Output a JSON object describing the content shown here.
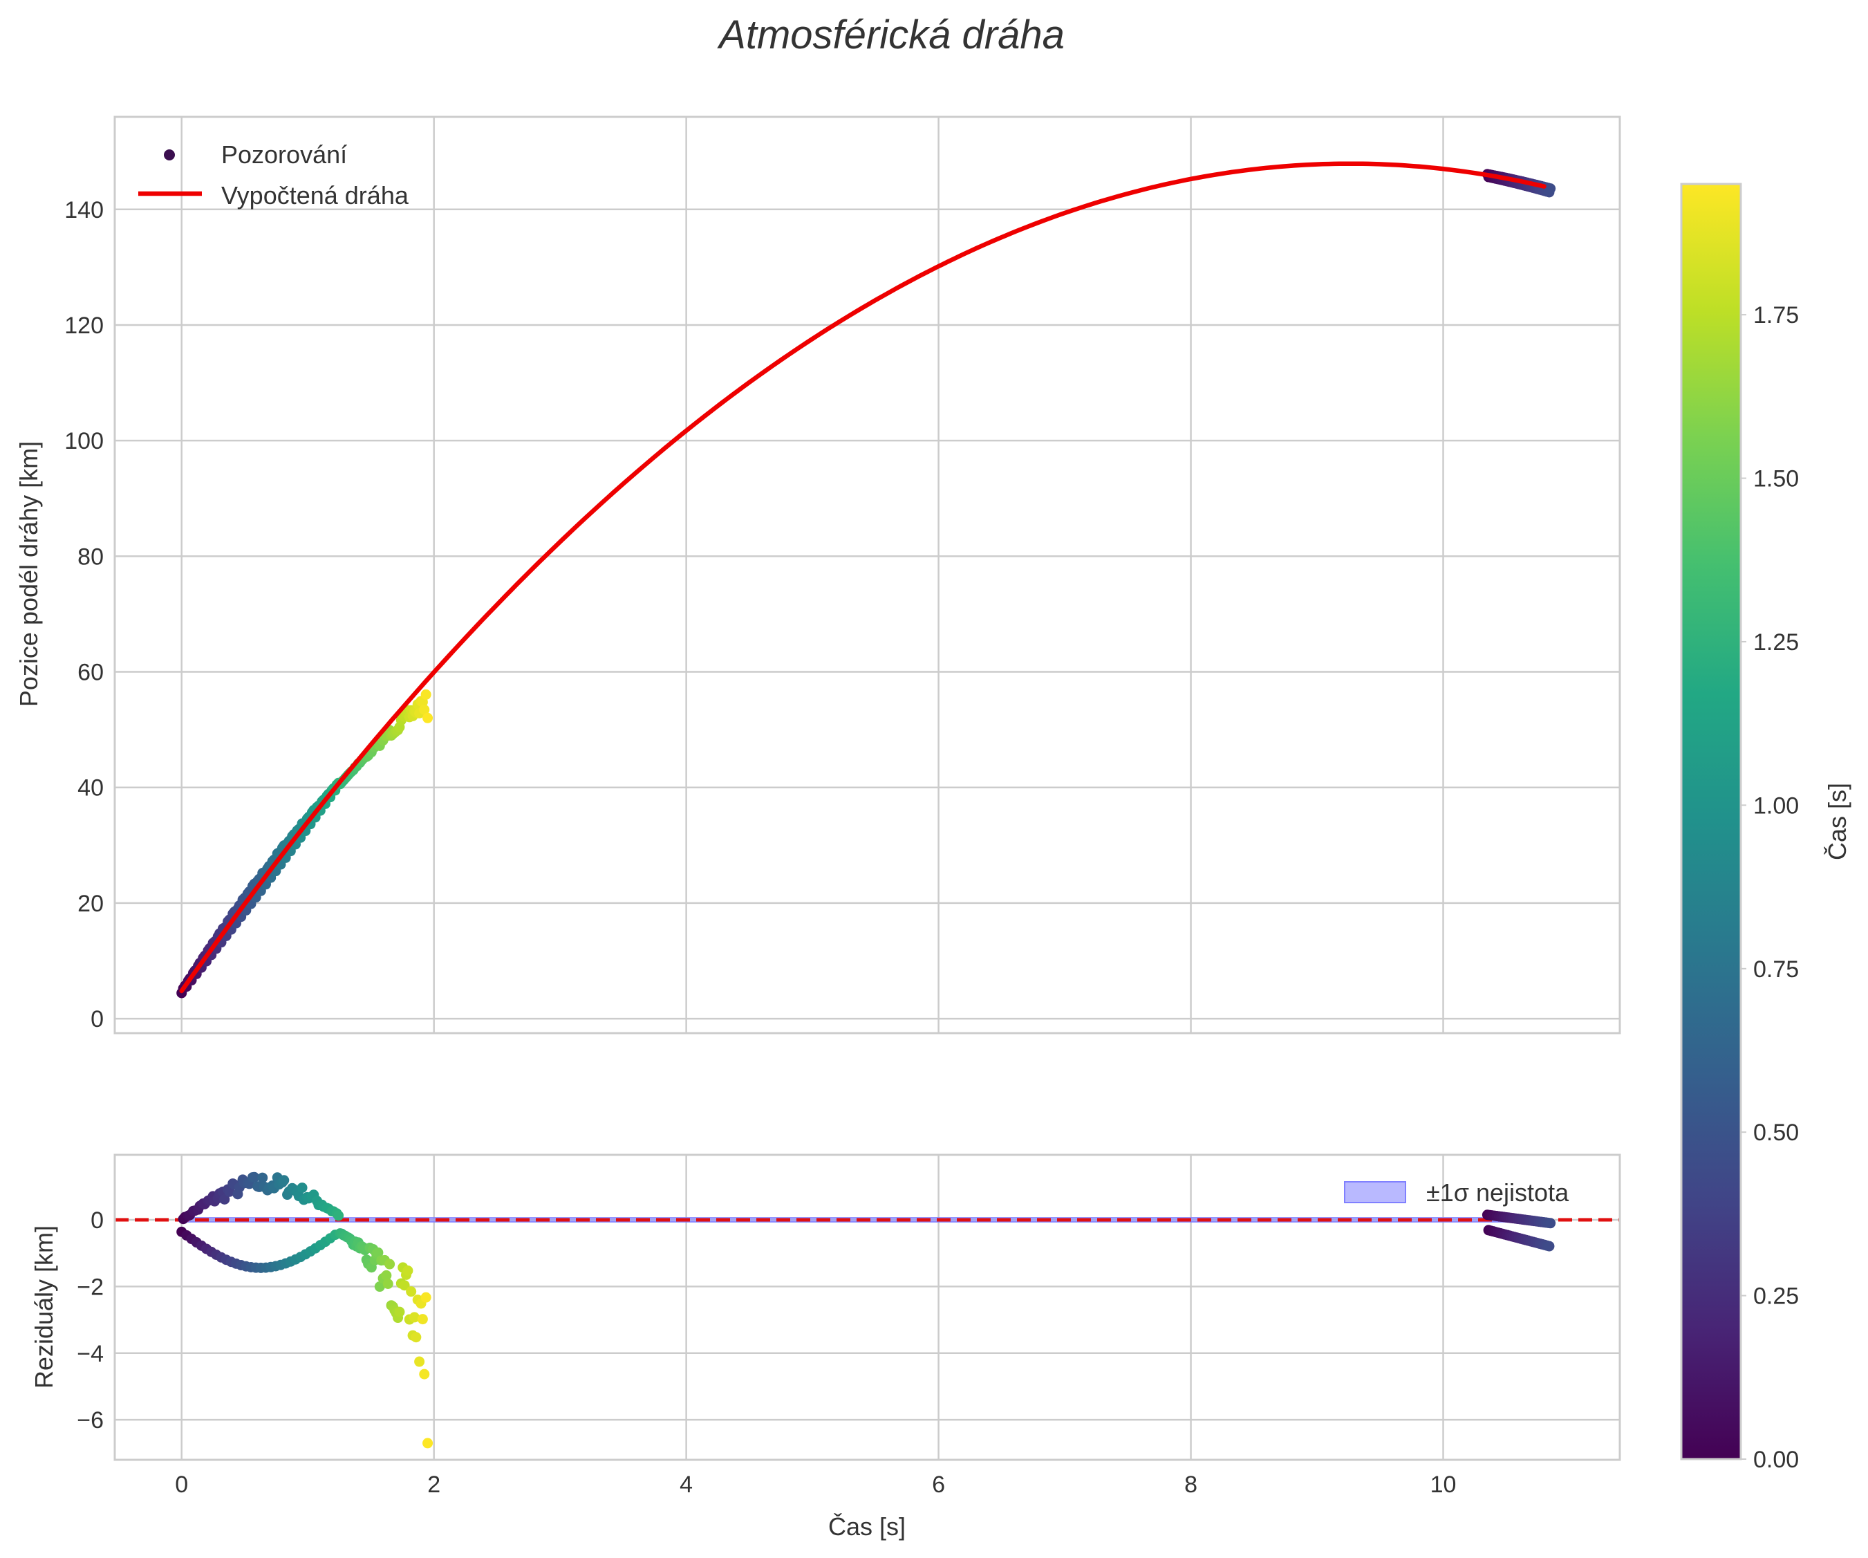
{
  "figure": {
    "title": "Atmosférická dráha"
  },
  "colors": {
    "fit_line": "#ee0000",
    "zero_line": "#e01010",
    "band_fill": "#8080ff",
    "grid": "#cccccc",
    "spine": "#cccccc",
    "text": "#333333"
  },
  "chart_data": [
    {
      "name": "main",
      "type": "scatter",
      "title": "",
      "xlabel": "",
      "ylabel": "Pozice podél dráhy [km]",
      "xlim": [
        -0.53,
        11.4
      ],
      "ylim": [
        -2.5,
        156
      ],
      "xticks": [
        0,
        2,
        4,
        6,
        8,
        10
      ],
      "xtick_labels": [
        "",
        "",
        "",
        "",
        "",
        ""
      ],
      "yticks": [
        0,
        20,
        40,
        60,
        80,
        100,
        120,
        140
      ],
      "ytick_labels": [
        "0",
        "20",
        "40",
        "60",
        "80",
        "100",
        "120",
        "140"
      ],
      "grid": true,
      "legend": {
        "position": "upper-left",
        "entries": [
          {
            "label": "Pozorování",
            "kind": "scatter",
            "color": "#3b0f4f"
          },
          {
            "label": "Vypočtená dráha",
            "kind": "line",
            "color": "#ee0000"
          }
        ]
      },
      "series": [
        {
          "name": "Pozorování",
          "kind": "scatter",
          "color_by": "time",
          "colormap": "viridis",
          "segments": [
            {
              "t_range": [
                0.0,
                1.95
              ],
              "c_range": [
                0.0,
                1.95
              ],
              "notes": "early observations along fitted path, colored by time"
            },
            {
              "t_range": [
                10.35,
                10.85
              ],
              "c_range": [
                0.0,
                0.45
              ],
              "notes": "late cluster near y≈146→144"
            }
          ]
        },
        {
          "name": "Vypočtená dráha",
          "kind": "line",
          "model": {
            "form": "y = a + b*t + c*t^2",
            "a": 4.8,
            "b": 30.9,
            "c": -1.668
          },
          "x_range": [
            0.0,
            10.8
          ]
        }
      ]
    },
    {
      "name": "residuals",
      "type": "scatter",
      "xlabel": "Čas [s]",
      "ylabel": "Reziduály [km]",
      "xlim": [
        -0.53,
        11.4
      ],
      "ylim": [
        -7.2,
        1.95
      ],
      "xticks": [
        0,
        2,
        4,
        6,
        8,
        10
      ],
      "xtick_labels": [
        "0",
        "2",
        "4",
        "6",
        "8",
        "10"
      ],
      "yticks": [
        -6,
        -4,
        -2,
        0
      ],
      "ytick_labels": [
        "−6",
        "−4",
        "−2",
        "0"
      ],
      "grid": true,
      "zero_line": {
        "y": 0,
        "style": "dashed",
        "color": "#e01010"
      },
      "band": {
        "label": "±1σ nejistota",
        "half_width_km": 0.06,
        "color": "#8080ff"
      },
      "legend": {
        "position": "upper-right",
        "entries": [
          {
            "label": "±1σ nejistota",
            "kind": "patch",
            "color": "#8080ff"
          }
        ]
      }
    }
  ],
  "colorbar": {
    "label": "Čas [s]",
    "colormap": "viridis",
    "range": [
      0.0,
      1.95
    ],
    "ticks": [
      0.0,
      0.25,
      0.5,
      0.75,
      1.0,
      1.25,
      1.5,
      1.75
    ],
    "tick_labels": [
      "0.00",
      "0.25",
      "0.50",
      "0.75",
      "1.00",
      "1.25",
      "1.50",
      "1.75"
    ]
  }
}
